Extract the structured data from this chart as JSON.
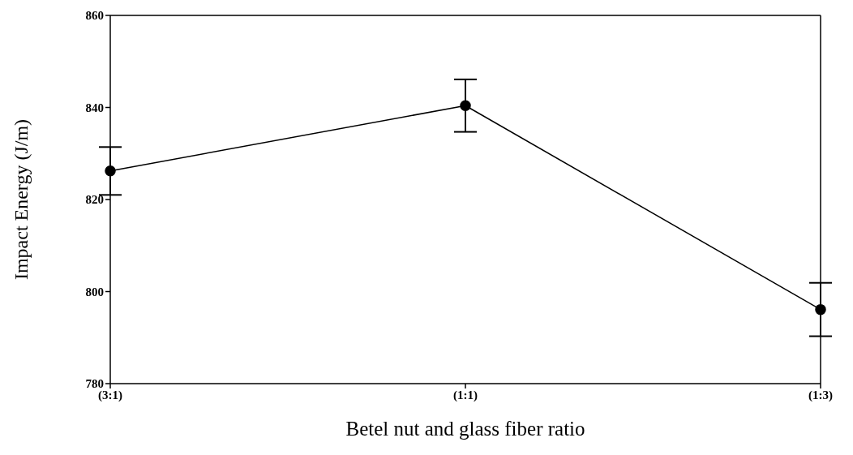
{
  "chart_data": {
    "type": "line",
    "xlabel": "Betel nut and glass fiber ratio",
    "ylabel": "Impact Energy (J/m)",
    "categories": [
      "(3:1)",
      "(1:1)",
      "(1:3)"
    ],
    "series": [
      {
        "color": "#000000",
        "values": [
          826.2,
          840.4,
          796.1
        ],
        "errors": [
          5.2,
          5.7,
          5.8
        ]
      }
    ],
    "ylim": [
      780,
      860
    ],
    "yticks": [
      780,
      800,
      820,
      840,
      860
    ],
    "grid": false,
    "legend": false,
    "marker": "circle",
    "line_style": "solid"
  }
}
